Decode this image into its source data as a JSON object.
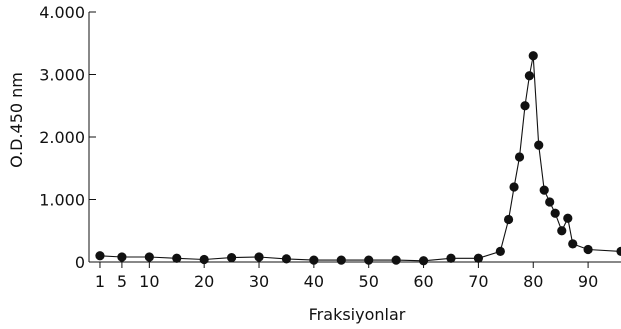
{
  "chart_data": {
    "type": "line",
    "xlabel": "Fraksiyonlar",
    "ylabel": "O.D.450 nm",
    "xlim": [
      -1,
      96
    ],
    "ylim": [
      0,
      4
    ],
    "x_ticks": [
      1,
      5,
      10,
      20,
      30,
      40,
      50,
      60,
      70,
      80,
      90
    ],
    "x_tick_labels": [
      "1",
      "5",
      "10",
      "20",
      "30",
      "40",
      "50",
      "60",
      "70",
      "80",
      "90"
    ],
    "y_ticks": [
      0,
      1,
      2,
      3,
      4
    ],
    "y_tick_labels": [
      "0",
      "1.000",
      "2.000",
      "3.000",
      "4.000"
    ],
    "grid": false,
    "series": [
      {
        "x": [
          1,
          5,
          10,
          15,
          20,
          25,
          30,
          35,
          40,
          45,
          50,
          55,
          60,
          65,
          70,
          74,
          75.5,
          76.5,
          77.5,
          78.5,
          79.3,
          80,
          81,
          82,
          83,
          84,
          85.2,
          86.3,
          87.2,
          90,
          96
        ],
        "y": [
          0.1,
          0.08,
          0.08,
          0.06,
          0.04,
          0.07,
          0.08,
          0.05,
          0.03,
          0.03,
          0.03,
          0.03,
          0.02,
          0.06,
          0.06,
          0.17,
          0.68,
          1.2,
          1.68,
          2.5,
          2.98,
          3.3,
          1.87,
          1.15,
          0.96,
          0.78,
          0.5,
          0.7,
          0.29,
          0.2,
          0.17
        ]
      }
    ]
  }
}
